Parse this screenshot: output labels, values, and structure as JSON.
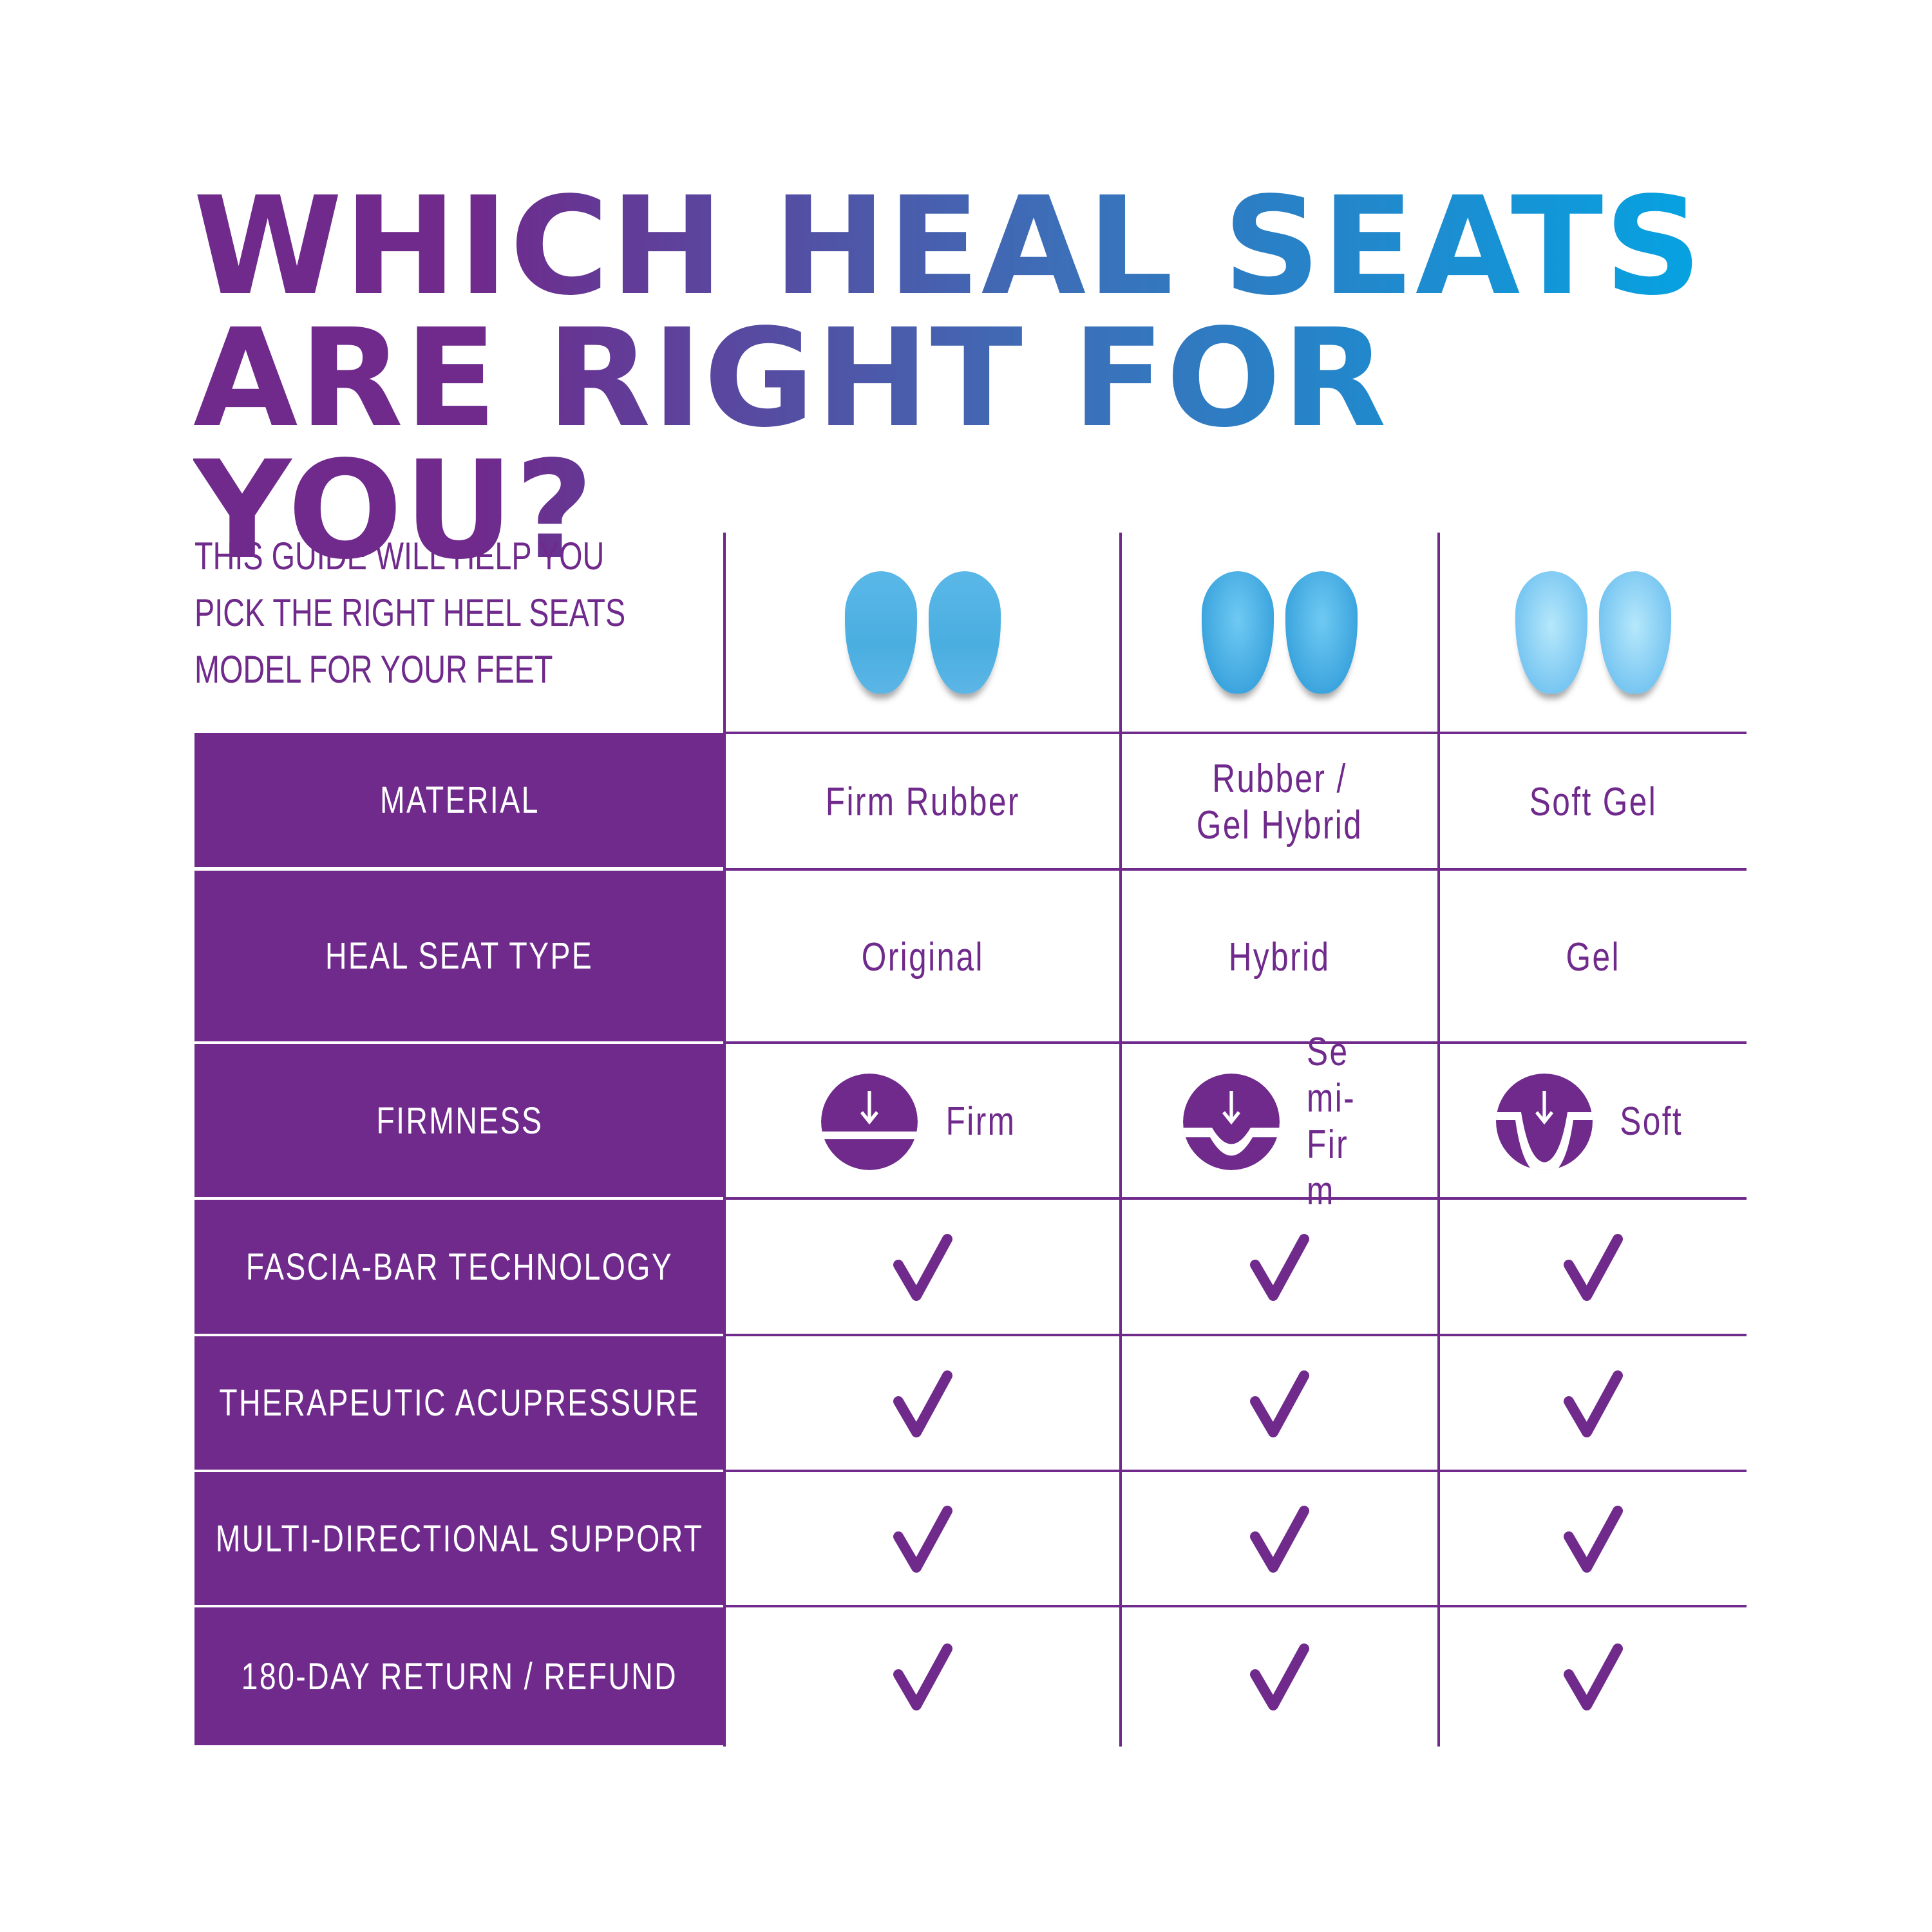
{
  "title": {
    "line1": "WHICH HEAL SEATS",
    "line2": "ARE RIGHT FOR YOU?"
  },
  "guide": [
    "THIS GUIDE WILL HELP YOU",
    "PICK THE RIGHT HEEL SEATS",
    "MODEL FOR YOUR FEET"
  ],
  "rows": [
    {
      "label": "MATERIAL",
      "values": [
        "Firm Rubber",
        "Rubber / Gel Hybrid",
        "Soft Gel"
      ]
    },
    {
      "label": "HEAL SEAT TYPE",
      "values": [
        "Original",
        "Hybrid",
        "Gel"
      ]
    },
    {
      "label": "FIRMNESS",
      "values": [
        "Firm",
        "Semi-Firm",
        "Soft"
      ]
    },
    {
      "label": "FASCIA-BAR TECHNOLOGY",
      "values": [
        true,
        true,
        true
      ]
    },
    {
      "label": "THERAPEUTIC ACUPRESSURE",
      "values": [
        true,
        true,
        true
      ]
    },
    {
      "label": "MULTI-DIRECTIONAL SUPPORT",
      "values": [
        true,
        true,
        true
      ]
    },
    {
      "label": "180-DAY RETURN / REFUND",
      "values": [
        true,
        true,
        true
      ]
    }
  ],
  "firmness_icons": [
    "firm-icon",
    "semi-firm-icon",
    "soft-icon"
  ],
  "colors": {
    "purple": "#6f2a8c",
    "blue": "#00a8e6",
    "heel_blue": "#4aaee0"
  }
}
